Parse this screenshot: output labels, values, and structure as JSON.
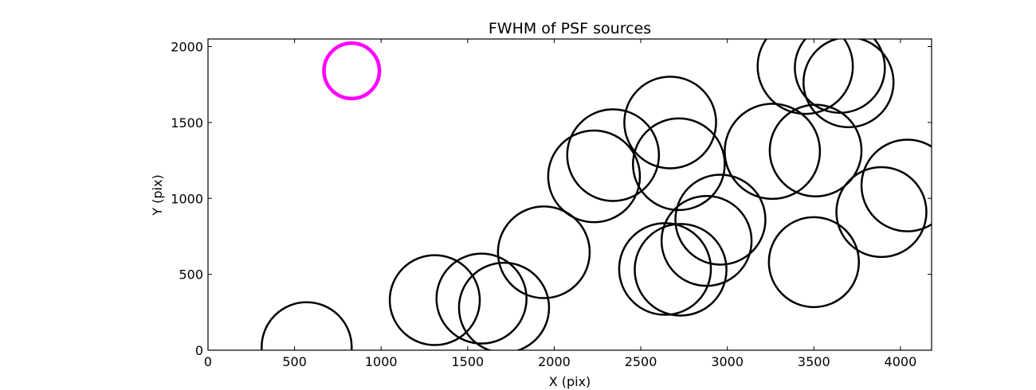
{
  "chart_data": {
    "type": "scatter",
    "title": "FWHM of PSF sources",
    "xlabel": "X (pix)",
    "ylabel": "Y (pix)",
    "xlim": [
      0,
      4180
    ],
    "ylim": [
      0,
      2050
    ],
    "xticks": [
      0,
      500,
      1000,
      1500,
      2000,
      2500,
      3000,
      3500,
      4000
    ],
    "yticks": [
      0,
      500,
      1000,
      1500,
      2000
    ],
    "grid": false,
    "marker": "open circle, size proportional to FWHM",
    "colors": {
      "source": "#000000",
      "highlight": "#ff00ff",
      "background": "#ffffff"
    },
    "points": [
      {
        "x": 570,
        "y": 20,
        "r": 260,
        "highlight": false
      },
      {
        "x": 830,
        "y": 1840,
        "r": 160,
        "highlight": true
      },
      {
        "x": 1310,
        "y": 330,
        "r": 260,
        "highlight": false
      },
      {
        "x": 1580,
        "y": 340,
        "r": 260,
        "highlight": false
      },
      {
        "x": 1710,
        "y": 280,
        "r": 260,
        "highlight": false
      },
      {
        "x": 1940,
        "y": 645,
        "r": 265,
        "highlight": false
      },
      {
        "x": 2230,
        "y": 1145,
        "r": 265,
        "highlight": false
      },
      {
        "x": 2340,
        "y": 1285,
        "r": 265,
        "highlight": false
      },
      {
        "x": 2640,
        "y": 535,
        "r": 265,
        "highlight": false
      },
      {
        "x": 2670,
        "y": 1500,
        "r": 265,
        "highlight": false
      },
      {
        "x": 2730,
        "y": 530,
        "r": 265,
        "highlight": false
      },
      {
        "x": 2720,
        "y": 1225,
        "r": 265,
        "highlight": false
      },
      {
        "x": 2880,
        "y": 720,
        "r": 260,
        "highlight": false
      },
      {
        "x": 2960,
        "y": 860,
        "r": 260,
        "highlight": false
      },
      {
        "x": 3260,
        "y": 1310,
        "r": 275,
        "highlight": false
      },
      {
        "x": 3450,
        "y": 1870,
        "r": 275,
        "highlight": false
      },
      {
        "x": 3500,
        "y": 580,
        "r": 260,
        "highlight": false
      },
      {
        "x": 3510,
        "y": 1315,
        "r": 265,
        "highlight": false
      },
      {
        "x": 3650,
        "y": 1860,
        "r": 260,
        "highlight": false
      },
      {
        "x": 3700,
        "y": 1765,
        "r": 260,
        "highlight": false
      },
      {
        "x": 3890,
        "y": 910,
        "r": 260,
        "highlight": false
      },
      {
        "x": 4040,
        "y": 1085,
        "r": 265,
        "highlight": false
      }
    ]
  }
}
